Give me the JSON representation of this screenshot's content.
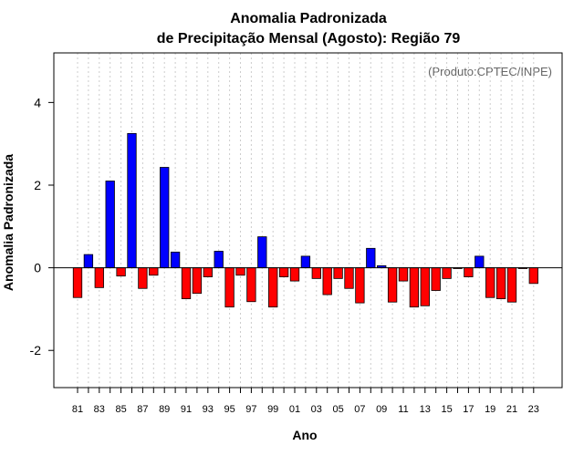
{
  "chart_data": {
    "type": "bar",
    "title_line1": "Anomalia Padronizada",
    "title_line2": "de Precipitação Mensal (Agosto): Região 79",
    "credit": "(Produto:CPTEC/INPE)",
    "xlabel": "Ano",
    "ylabel": "Anomalia Padronizada",
    "ylim": [
      -2.9,
      5.2
    ],
    "yticks": [
      -2,
      0,
      2,
      4
    ],
    "ytick_labels": [
      "-2",
      "0",
      "2",
      "4"
    ],
    "xtick_labels": [
      "81",
      "83",
      "85",
      "87",
      "89",
      "91",
      "93",
      "95",
      "97",
      "99",
      "01",
      "03",
      "05",
      "07",
      "09",
      "11",
      "13",
      "15",
      "17",
      "19",
      "21",
      "23"
    ],
    "categories": [
      "81",
      "82",
      "83",
      "84",
      "85",
      "86",
      "87",
      "88",
      "89",
      "90",
      "91",
      "92",
      "93",
      "94",
      "95",
      "96",
      "97",
      "98",
      "99",
      "00",
      "01",
      "02",
      "03",
      "04",
      "05",
      "06",
      "07",
      "08",
      "09",
      "10",
      "11",
      "12",
      "13",
      "14",
      "15",
      "16",
      "17",
      "18",
      "19",
      "20",
      "21",
      "22",
      "23"
    ],
    "values": [
      -0.72,
      0.32,
      -0.48,
      2.1,
      -0.2,
      3.25,
      -0.5,
      -0.18,
      2.43,
      0.38,
      -0.75,
      -0.62,
      -0.22,
      0.4,
      -0.95,
      -0.18,
      -0.82,
      0.75,
      -0.95,
      -0.22,
      -0.32,
      0.28,
      -0.26,
      -0.65,
      -0.26,
      -0.5,
      -0.85,
      0.47,
      0.05,
      -0.83,
      -0.32,
      -0.95,
      -0.92,
      -0.55,
      -0.26,
      -0.02,
      -0.22,
      0.28,
      -0.72,
      -0.75,
      -0.83,
      -0.02,
      -0.38
    ],
    "colors": {
      "positive": "#0000ff",
      "negative": "#ff0000",
      "grid": "#cccccc"
    }
  }
}
